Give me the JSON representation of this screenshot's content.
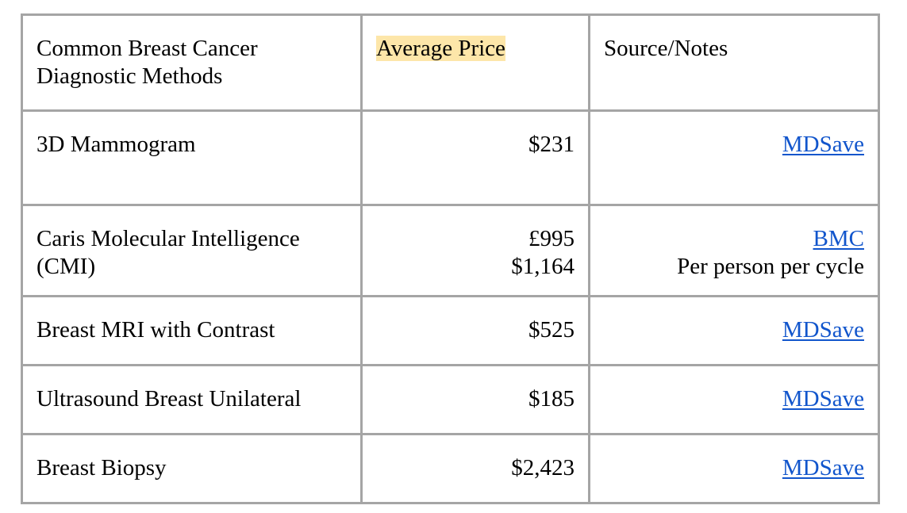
{
  "table": {
    "headers": {
      "method": "Common Breast Cancer Diagnostic Methods",
      "price": "Average Price",
      "source": "Source/Notes"
    },
    "header_highlight_color": "#fde6a9",
    "link_color": "#1155cc",
    "rows": [
      {
        "method": "3D Mammogram",
        "prices": [
          "$231"
        ],
        "source_link": "MDSave",
        "note": ""
      },
      {
        "method": "Caris Molecular Intelligence (CMI)",
        "prices": [
          "£995",
          "$1,164"
        ],
        "source_link": "BMC",
        "note": "Per person per cycle"
      },
      {
        "method": "Breast MRI with Contrast",
        "prices": [
          "$525"
        ],
        "source_link": "MDSave",
        "note": ""
      },
      {
        "method": "Ultrasound Breast Unilateral",
        "prices": [
          "$185"
        ],
        "source_link": "MDSave",
        "note": ""
      },
      {
        "method": "Breast Biopsy",
        "prices": [
          "$2,423"
        ],
        "source_link": "MDSave",
        "note": ""
      }
    ]
  }
}
